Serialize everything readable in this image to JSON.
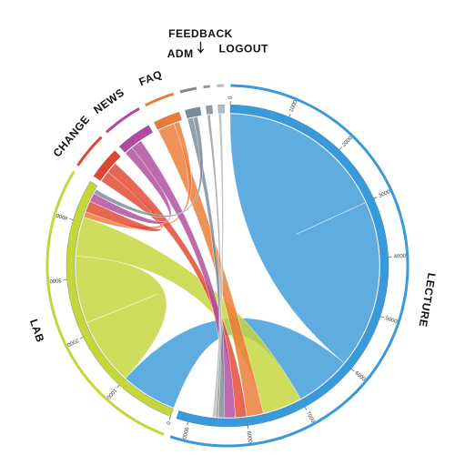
{
  "chart_data": {
    "type": "chord",
    "segments": [
      {
        "name": "LECTURE",
        "value": 9200,
        "color": "#3a9ad9",
        "ticks": [
          0,
          1000,
          2000,
          3000,
          4000,
          5000,
          6000,
          7000,
          8000,
          9000
        ]
      },
      {
        "name": "LAB",
        "value": 4700,
        "color": "#c5d53a",
        "ticks": [
          0,
          1000,
          2000,
          3000,
          4000
        ]
      },
      {
        "name": "CHANGE",
        "value": 550,
        "color": "#e2452f"
      },
      {
        "name": "NEWS",
        "value": 600,
        "color": "#b04a9b"
      },
      {
        "name": "FAQ",
        "value": 450,
        "color": "#ec7a35"
      },
      {
        "name": "ADM",
        "value": 250,
        "color": "#7a8a96"
      },
      {
        "name": "FEEDBACK",
        "value": 100,
        "color": "#9a9a9a"
      },
      {
        "name": "LOGOUT",
        "value": 100,
        "color": "#b8b8b8"
      }
    ],
    "links": [
      {
        "source": "LECTURE",
        "target": "LECTURE",
        "value": 3000
      },
      {
        "source": "LECTURE",
        "target": "LAB",
        "value": 1000
      },
      {
        "source": "LAB",
        "target": "LAB",
        "value": 1200
      },
      {
        "source": "LAB",
        "target": "LECTURE",
        "value": 700
      },
      {
        "source": "FAQ",
        "target": "LECTURE",
        "value": 300
      },
      {
        "source": "FAQ",
        "target": "LAB",
        "value": 100
      },
      {
        "source": "CHANGE",
        "target": "LAB",
        "value": 200
      },
      {
        "source": "CHANGE",
        "target": "LECTURE",
        "value": 200
      },
      {
        "source": "NEWS",
        "target": "LAB",
        "value": 150
      },
      {
        "source": "NEWS",
        "target": "LECTURE",
        "value": 200
      },
      {
        "source": "ADM",
        "target": "LECTURE",
        "value": 100
      },
      {
        "source": "ADM",
        "target": "LAB",
        "value": 80
      },
      {
        "source": "FEEDBACK",
        "target": "LECTURE",
        "value": 50
      },
      {
        "source": "LOGOUT",
        "target": "LECTURE",
        "value": 50
      }
    ]
  }
}
